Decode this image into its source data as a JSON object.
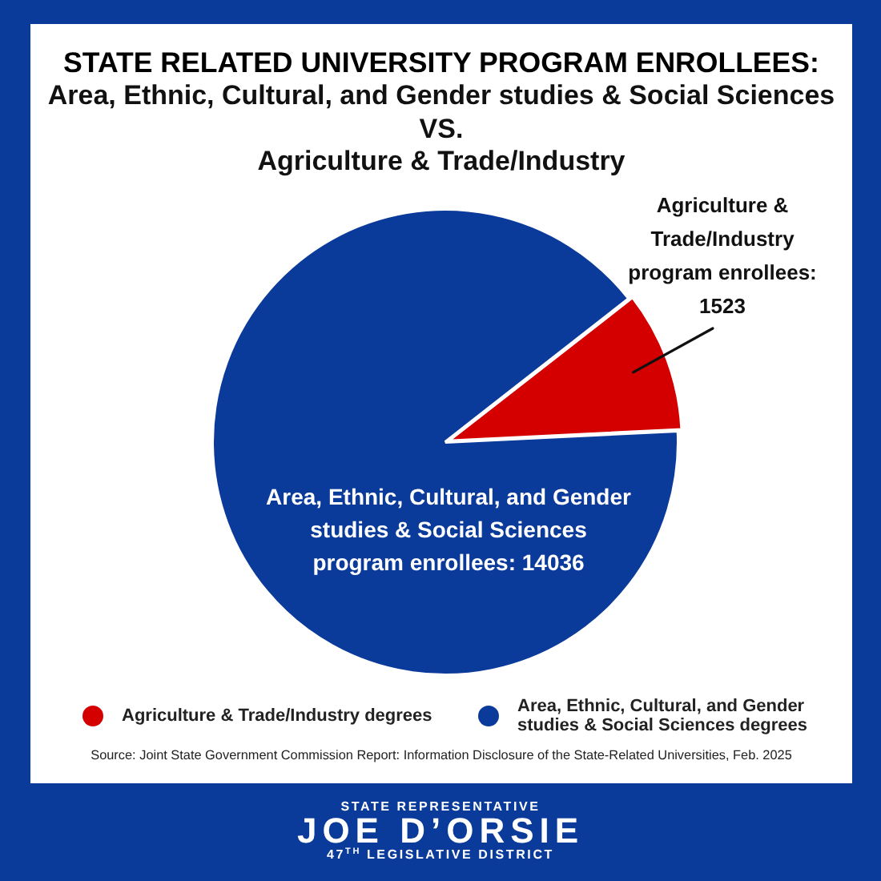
{
  "chart_data": {
    "type": "pie",
    "title": "STATE RELATED UNIVERSITY PROGRAM ENROLLEES:",
    "subtitle": "Area, Ethnic, Cultural, and Gender studies & Social Sciences\nVS.\nAgriculture & Trade/Industry",
    "categories": [
      "Agriculture & Trade/Industry degrees",
      "Area, Ethnic, Cultural, and Gender studies & Social Sciences degrees"
    ],
    "values": [
      1523,
      14036
    ],
    "colors": [
      "#d40000",
      "#0a3a9a"
    ],
    "value_labels": [
      "Agriculture & Trade/Industry program enrollees: 1523",
      "Area, Ethnic, Cultural, and Gender studies & Social Sciences program enrollees: 14036"
    ],
    "legend": "bottom",
    "annotations": [
      "Source: Joint State Government Commission Report: Information Disclosure of the State-Related Universities, Feb. 2025",
      "STATE REPRESENTATIVE",
      "JOE D’ORSIE",
      "47$^{TH}$ LEGISLATIVE DISTRICT"
    ]
  }
}
